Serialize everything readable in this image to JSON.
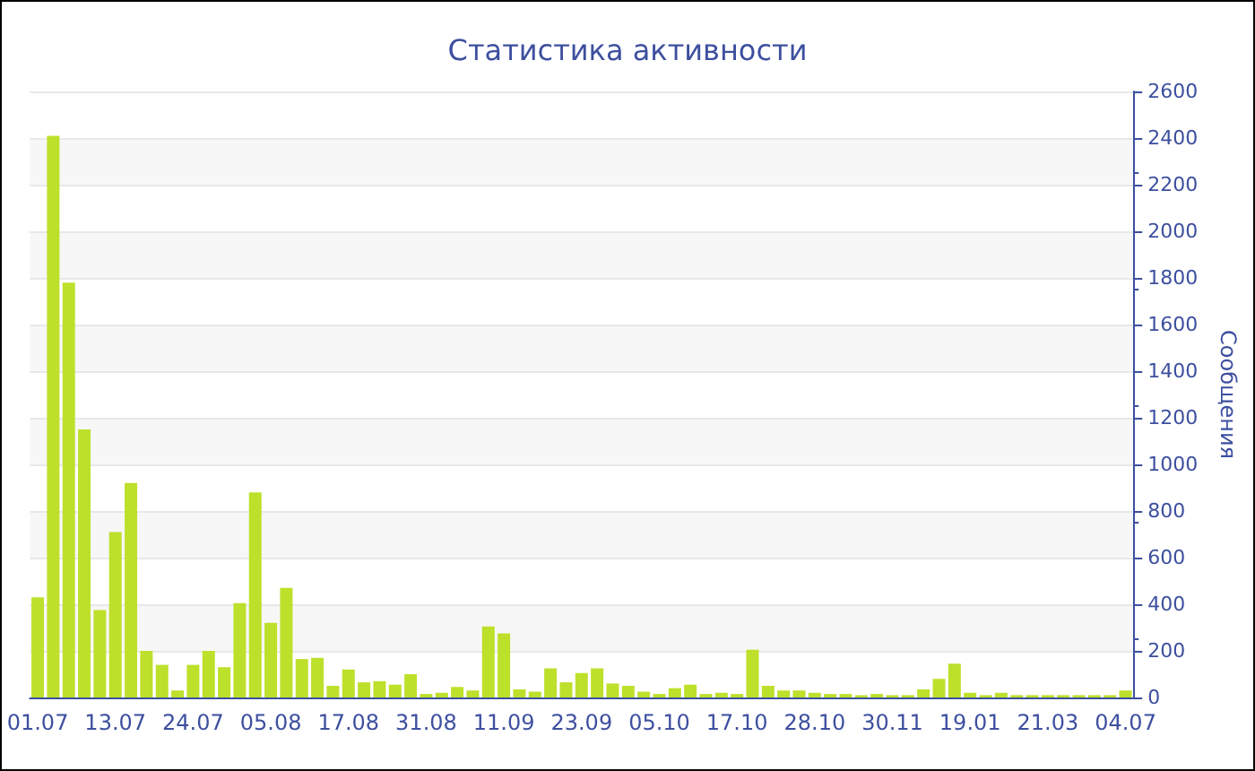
{
  "chart_data": {
    "type": "bar",
    "title": "Статистика активности",
    "ylabel": "Сообщения",
    "categories": [
      "01.07",
      null,
      null,
      null,
      null,
      "13.07",
      null,
      null,
      null,
      null,
      "24.07",
      null,
      null,
      null,
      null,
      "05.08",
      null,
      null,
      null,
      null,
      "17.08",
      null,
      null,
      null,
      null,
      "31.08",
      null,
      null,
      null,
      null,
      "11.09",
      null,
      null,
      null,
      null,
      "23.09",
      null,
      null,
      null,
      null,
      "05.10",
      null,
      null,
      null,
      null,
      "17.10",
      null,
      null,
      null,
      null,
      "28.10",
      null,
      null,
      null,
      null,
      "30.11",
      null,
      null,
      null,
      null,
      "19.01",
      null,
      null,
      null,
      null,
      "21.03",
      null,
      null,
      null,
      null,
      "04.07"
    ],
    "values": [
      430,
      2410,
      1780,
      1150,
      375,
      710,
      920,
      200,
      140,
      30,
      140,
      200,
      130,
      405,
      880,
      320,
      470,
      165,
      170,
      50,
      120,
      65,
      70,
      55,
      100,
      15,
      20,
      45,
      30,
      305,
      275,
      35,
      25,
      125,
      65,
      105,
      125,
      60,
      50,
      25,
      15,
      40,
      55,
      15,
      20,
      15,
      205,
      50,
      30,
      30,
      20,
      15,
      15,
      10,
      15,
      10,
      10,
      35,
      80,
      145,
      20,
      10,
      20,
      10,
      10,
      10,
      10,
      10,
      10,
      10,
      30
    ],
    "color": "#bde02b",
    "ylim": [
      0,
      2600
    ],
    "yticks": [
      0,
      200,
      400,
      600,
      800,
      1000,
      1200,
      1400,
      1600,
      1800,
      2000,
      2200,
      2400,
      2600
    ],
    "grid": "y"
  }
}
